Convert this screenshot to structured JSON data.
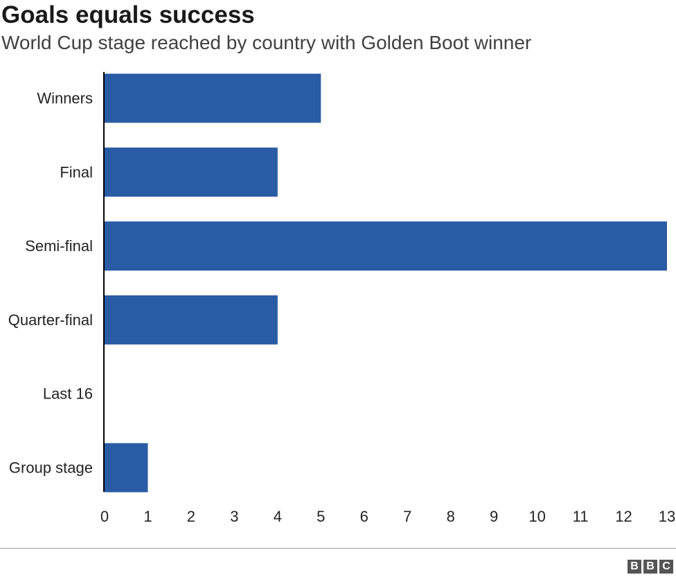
{
  "chart_data": {
    "type": "bar",
    "orientation": "horizontal",
    "title": "Goals equals success",
    "subtitle": "World Cup stage reached by country with Golden Boot winner",
    "categories": [
      "Winners",
      "Final",
      "Semi-final",
      "Quarter-final",
      "Last 16",
      "Group stage"
    ],
    "values": [
      5,
      4,
      13,
      4,
      0,
      1
    ],
    "xlim": [
      0,
      13
    ],
    "x_ticks": [
      "0",
      "1",
      "2",
      "3",
      "4",
      "5",
      "6",
      "7",
      "8",
      "9",
      "10",
      "11",
      "12",
      "13"
    ],
    "grid": false,
    "bar_color": "#2a5ca5"
  },
  "footer": {
    "logo": [
      "B",
      "B",
      "C"
    ]
  }
}
